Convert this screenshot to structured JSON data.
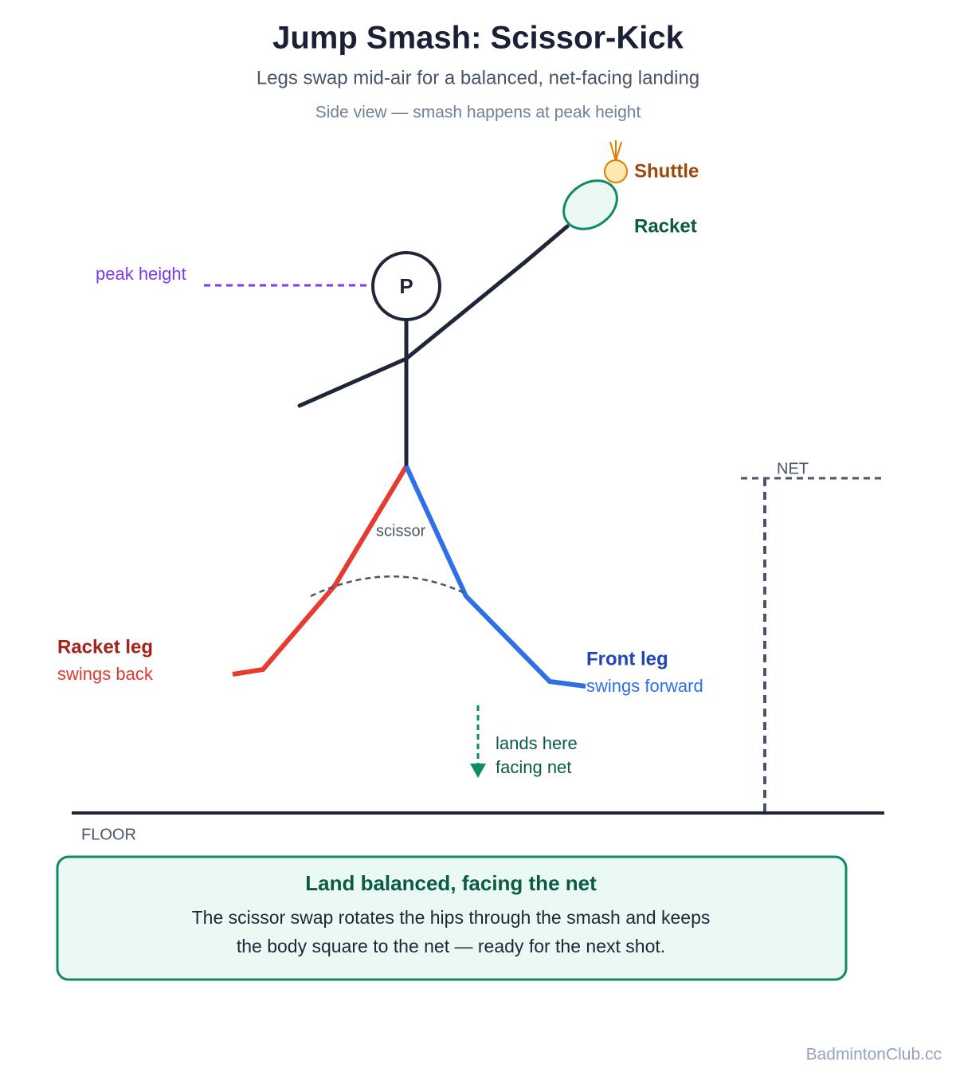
{
  "header": {
    "title": "Jump Smash: Scissor-Kick",
    "subtitle": "Legs swap mid-air for a balanced, net-facing landing",
    "note": "Side view — smash happens at peak height"
  },
  "labels": {
    "shuttle": "Shuttle",
    "racket": "Racket",
    "peak": "peak height",
    "player": "P",
    "scissor": "scissor",
    "racket_leg": "Racket leg",
    "racket_leg_note": "swings back",
    "front_leg": "Front leg",
    "front_leg_note": "swings forward",
    "landing_1": "lands here",
    "landing_2": "facing net",
    "net": "NET",
    "floor": "FLOOR"
  },
  "callout": {
    "title": "Land balanced, facing the net",
    "line_1": "The scissor swap rotates the hips through the smash and keeps",
    "line_2": "the body square to the net — ready for the next shot."
  },
  "footer": "BadmintonClub.cc"
}
